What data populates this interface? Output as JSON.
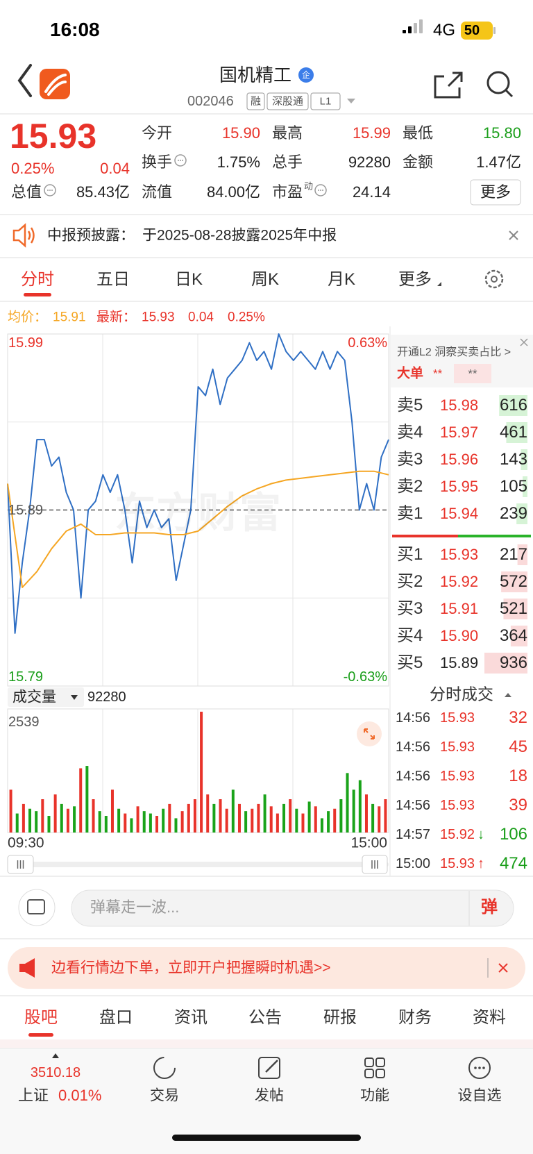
{
  "status_bar": {
    "time": "16:08",
    "network": "4G",
    "battery": "50"
  },
  "header": {
    "title": "国机精工",
    "badge": "企",
    "code": "002046",
    "tags": [
      "融",
      "深股通",
      "L1"
    ]
  },
  "quote": {
    "price": "15.93",
    "change_pct": "0.25%",
    "change": "0.04",
    "color": "#e8332a",
    "fields": [
      {
        "label": "今开",
        "value": "15.90",
        "color": "#e8332a"
      },
      {
        "label": "最高",
        "value": "15.99",
        "color": "#e8332a"
      },
      {
        "label": "最低",
        "value": "15.80",
        "color": "#1a9e1a"
      },
      {
        "label": "换手",
        "value": "1.75%",
        "color": "#222222",
        "info_icon": true
      },
      {
        "label": "总手",
        "value": "92280",
        "color": "#222222"
      },
      {
        "label": "金额",
        "value": "1.47亿",
        "color": "#222222"
      },
      {
        "label": "总值",
        "value": "85.43亿",
        "color": "#222222",
        "info_icon": true
      },
      {
        "label": "流值",
        "value": "84.00亿",
        "color": "#222222"
      },
      {
        "label": "市盈",
        "sup": "动",
        "value": "24.14",
        "color": "#222222",
        "info_icon": true
      }
    ],
    "more": "更多"
  },
  "notice": {
    "label": "中报预披露：",
    "text": "于2025-08-28披露2025年中报"
  },
  "tabs": {
    "items": [
      "分时",
      "五日",
      "日K",
      "周K",
      "月K",
      "更多"
    ],
    "active": 0
  },
  "legend": {
    "avg_label": "均价：",
    "avg": "15.91",
    "last_label": "最新：",
    "last": "15.93",
    "change": "0.04",
    "change_pct": "0.25%"
  },
  "price_chart": {
    "type": "line",
    "watermark": "东方财富",
    "ylim": [
      15.79,
      15.99
    ],
    "yticks": [
      15.79,
      15.89,
      15.99
    ],
    "ytick_colors": [
      "#1a9e1a",
      "#555555",
      "#e8332a"
    ],
    "pct_labels": [
      "0.63%",
      "-0.63%"
    ],
    "series": [
      {
        "color": "#2f6fc4",
        "values": [
          15.905,
          15.82,
          15.86,
          15.89,
          15.93,
          15.93,
          15.915,
          15.92,
          15.9,
          15.89,
          15.84,
          15.89,
          15.895,
          15.91,
          15.9,
          15.91,
          15.89,
          15.86,
          15.895,
          15.88,
          15.89,
          15.88,
          15.885,
          15.85,
          15.87,
          15.89,
          15.96,
          15.955,
          15.97,
          15.95,
          15.965,
          15.97,
          15.975,
          15.985,
          15.975,
          15.98,
          15.97,
          15.99,
          15.98,
          15.975,
          15.98,
          15.975,
          15.97,
          15.98,
          15.97,
          15.98,
          15.975,
          15.94,
          15.89,
          15.905,
          15.89,
          15.92,
          15.93
        ]
      },
      {
        "color": "#f5a623",
        "values": [
          15.905,
          15.846,
          15.855,
          15.868,
          15.878,
          15.882,
          15.876,
          15.876,
          15.877,
          15.877,
          15.877,
          15.876,
          15.876,
          15.878,
          15.885,
          15.892,
          15.898,
          15.902,
          15.905,
          15.907,
          15.908,
          15.909,
          15.91,
          15.911,
          15.912,
          15.912,
          15.91
        ]
      }
    ]
  },
  "volume_chart": {
    "type": "bar",
    "label": "成交量",
    "total": "92280",
    "ylim": [
      0,
      2539
    ],
    "yticks": [
      2539
    ],
    "x_labels": [
      "09:30",
      "15:00"
    ],
    "values": [
      900,
      400,
      600,
      500,
      450,
      700,
      350,
      800,
      600,
      500,
      550,
      1350,
      1400,
      700,
      450,
      350,
      900,
      500,
      400,
      300,
      550,
      450,
      400,
      350,
      500,
      600,
      300,
      450,
      600,
      700,
      2539,
      800,
      600,
      700,
      500,
      900,
      600,
      450,
      500,
      600,
      800,
      550,
      400,
      600,
      700,
      500,
      400,
      650,
      550,
      300,
      450,
      500,
      700,
      1250,
      900,
      1100,
      800,
      600,
      550,
      700
    ],
    "colors": [
      "#e8332a",
      "#1aa31a",
      "#e8332a",
      "#1aa31a",
      "#1aa31a",
      "#e8332a",
      "#1aa31a",
      "#e8332a",
      "#1aa31a",
      "#e8332a",
      "#1aa31a",
      "#e8332a",
      "#1aa31a",
      "#e8332a",
      "#1aa31a",
      "#1aa31a",
      "#e8332a",
      "#1aa31a",
      "#e8332a",
      "#1aa31a",
      "#e8332a",
      "#1aa31a",
      "#1aa31a",
      "#e8332a",
      "#1aa31a",
      "#e8332a",
      "#1aa31a",
      "#e8332a",
      "#e8332a",
      "#e8332a",
      "#e8332a",
      "#e8332a",
      "#1aa31a",
      "#e8332a",
      "#e8332a",
      "#1aa31a",
      "#e8332a",
      "#1aa31a",
      "#e8332a",
      "#e8332a",
      "#1aa31a",
      "#e8332a",
      "#e8332a",
      "#1aa31a",
      "#e8332a",
      "#1aa31a",
      "#e8332a",
      "#1aa31a",
      "#e8332a",
      "#1aa31a",
      "#1aa31a",
      "#e8332a",
      "#1aa31a",
      "#1aa31a",
      "#1aa31a",
      "#1aa31a",
      "#e8332a",
      "#1aa31a",
      "#e8332a",
      "#e8332a"
    ]
  },
  "order_book": {
    "promo": "开通L2 洞察买卖占比 >",
    "big_order": {
      "label": "大单",
      "values": [
        "**",
        "**"
      ]
    },
    "asks": [
      {
        "label": "卖5",
        "price": "15.98",
        "volume": 616
      },
      {
        "label": "卖4",
        "price": "15.97",
        "volume": 461
      },
      {
        "label": "卖3",
        "price": "15.96",
        "volume": 143
      },
      {
        "label": "卖2",
        "price": "15.95",
        "volume": 105
      },
      {
        "label": "卖1",
        "price": "15.94",
        "volume": 239
      }
    ],
    "bids": [
      {
        "label": "买1",
        "price": "15.93",
        "volume": 217
      },
      {
        "label": "买2",
        "price": "15.92",
        "volume": 572
      },
      {
        "label": "买3",
        "price": "15.91",
        "volume": 521
      },
      {
        "label": "买4",
        "price": "15.90",
        "volume": 364
      },
      {
        "label": "买5",
        "price": "15.89",
        "volume": 936
      }
    ]
  },
  "trades": {
    "title": "分时成交",
    "rows": [
      {
        "time": "14:56",
        "price": "15.93",
        "volume": 32,
        "color": "#e8332a"
      },
      {
        "time": "14:56",
        "price": "15.93",
        "volume": 45,
        "color": "#e8332a"
      },
      {
        "time": "14:56",
        "price": "15.93",
        "volume": 18,
        "color": "#e8332a"
      },
      {
        "time": "14:56",
        "price": "15.93",
        "volume": 39,
        "color": "#e8332a"
      },
      {
        "time": "14:57",
        "price": "15.92",
        "arrow": "↓",
        "arrow_color": "#1a9e1a",
        "volume": 106,
        "color": "#1a9e1a"
      },
      {
        "time": "15:00",
        "price": "15.93",
        "arrow": "↑",
        "arrow_color": "#e8332a",
        "volume": 474,
        "color": "#1a9e1a"
      }
    ]
  },
  "comment_bar": {
    "placeholder": "弹幕走一波...",
    "button": "弹"
  },
  "ad": {
    "text": "边看行情边下单，立即开户把握瞬时机遇>>"
  },
  "bottom_tabs": {
    "items": [
      "股吧",
      "盘口",
      "资讯",
      "公告",
      "研报",
      "财务",
      "资料"
    ],
    "active": 0
  },
  "nav": {
    "index_value": "3510.18",
    "index_name": "上证",
    "index_change": "0.01%",
    "items": [
      "交易",
      "发帖",
      "功能",
      "设自选"
    ]
  }
}
